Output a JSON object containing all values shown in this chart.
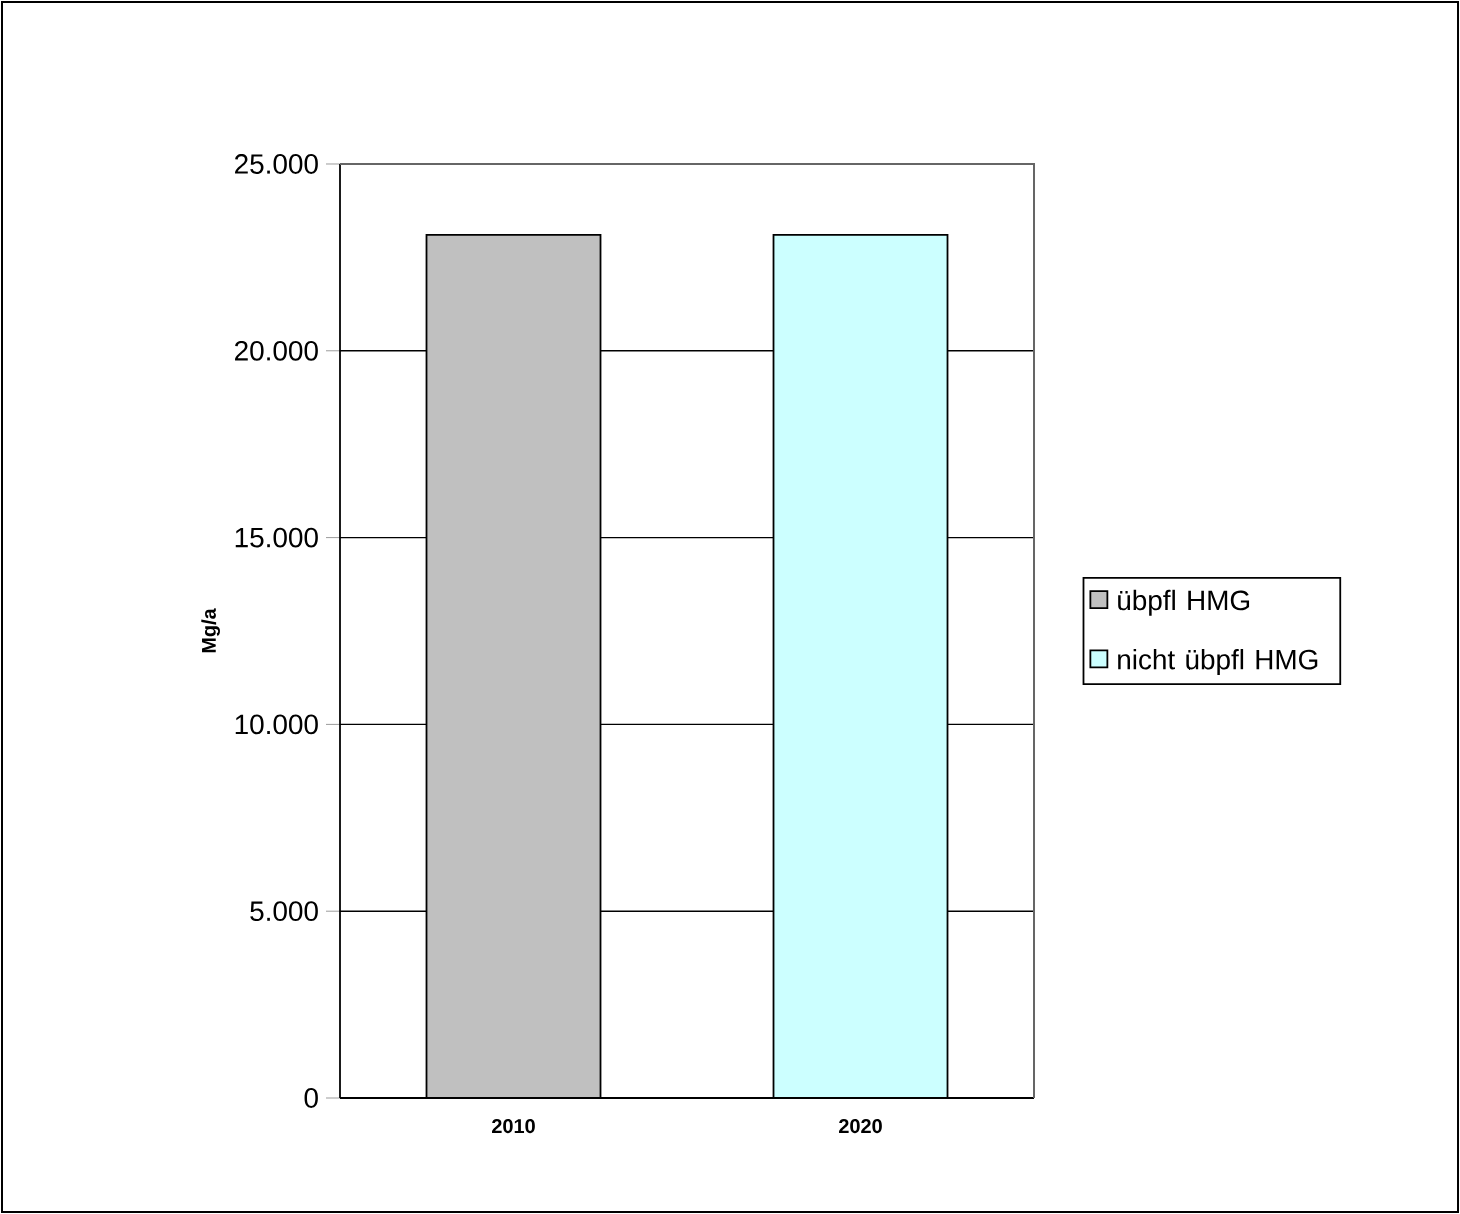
{
  "chart_data": {
    "type": "bar",
    "ylabel": "Mg/a",
    "categories": [
      "2010",
      "2020"
    ],
    "series": [
      {
        "name": "übpfl HMG",
        "color": "#c0c0c0",
        "values": [
          23100,
          null
        ]
      },
      {
        "name": "nicht übpfl HMG",
        "color": "#ccffff",
        "values": [
          null,
          23100
        ]
      }
    ],
    "ylim": [
      0,
      25000
    ],
    "yticks": [
      0,
      {
        "value": 5000,
        "label": "5.000"
      },
      {
        "value": 10000,
        "label": "10.000"
      },
      {
        "value": 15000,
        "label": "15.000"
      },
      {
        "value": 20000,
        "label": "20.000"
      },
      {
        "value": 25000,
        "label": "25.000"
      }
    ],
    "grid": "y",
    "legend": "right"
  }
}
